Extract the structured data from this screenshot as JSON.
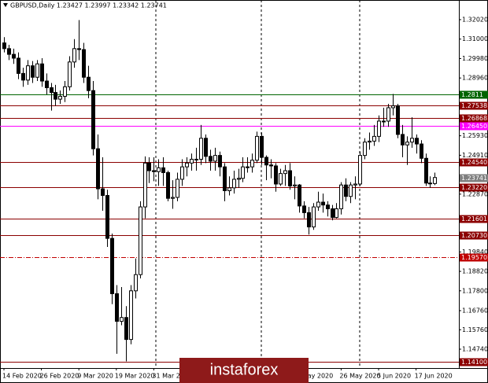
{
  "chart_data": {
    "type": "candlestick",
    "title": "GBPUSD,Daily  1.23427 1.23997 1.23342 1.23741",
    "watermark": "instaforex",
    "categories": [
      "14 Feb 2020",
      null,
      null,
      null,
      null,
      null,
      null,
      null,
      "26 Feb 2020",
      null,
      null,
      null,
      null,
      null,
      null,
      null,
      "9 Mar 2020",
      null,
      null,
      null,
      null,
      null,
      null,
      null,
      "19 Mar 2020",
      null,
      null,
      null,
      null,
      null,
      null,
      null,
      "31 Mar 2020",
      null,
      null,
      null,
      null,
      null,
      null,
      null,
      null,
      null,
      null,
      null,
      null,
      null,
      null,
      null,
      null,
      null,
      null,
      null,
      null,
      null,
      null,
      null,
      null,
      null,
      null,
      null,
      null,
      null,
      null,
      null,
      "May 2020",
      null,
      null,
      null,
      null,
      null,
      null,
      null,
      "26 May 2020",
      null,
      null,
      null,
      null,
      null,
      null,
      null,
      "5 Jun 2020",
      null,
      null,
      null,
      null,
      null,
      null,
      null,
      "17 Jun 2020",
      null,
      null,
      null,
      null
    ],
    "open": [
      1.308,
      1.305,
      1.302,
      1.3,
      1.292,
      1.2885,
      1.296,
      1.29,
      1.297,
      1.288,
      1.2845,
      1.282,
      1.2785,
      1.28,
      1.285,
      1.298,
      1.305,
      1.3045,
      1.29,
      1.283,
      1.2525,
      1.2315,
      1.228,
      1.2055,
      1.1765,
      1.162,
      1.164,
      1.1525,
      1.178,
      1.1865,
      1.222,
      1.245,
      1.241,
      1.2405,
      1.2425,
      1.24,
      1.2265,
      1.227,
      1.2365,
      1.243,
      1.245,
      1.247,
      1.247,
      1.258,
      1.2485,
      1.246,
      1.249,
      1.243,
      1.2305,
      1.232,
      1.2365,
      1.237,
      1.243,
      1.243,
      1.2465,
      1.259,
      1.248,
      1.244,
      1.2435,
      1.234,
      1.2395,
      1.241,
      1.233,
      1.2335,
      1.2225,
      1.219,
      1.2115,
      1.222,
      1.2245,
      1.223,
      1.221,
      1.2165,
      1.221,
      1.2335,
      1.2275,
      1.2335,
      1.234,
      1.249,
      1.256,
      1.2565,
      1.259,
      1.267,
      1.267,
      1.274,
      1.275,
      1.26,
      1.2545,
      1.256,
      1.258,
      1.255,
      1.2475,
      1.2345,
      1.23427
    ],
    "high": [
      1.311,
      1.307,
      1.305,
      1.303,
      1.295,
      1.299,
      1.2985,
      1.299,
      1.3,
      1.292,
      1.287,
      1.286,
      1.283,
      1.288,
      1.301,
      1.31,
      1.32,
      1.308,
      1.296,
      1.288,
      1.26,
      1.248,
      1.231,
      1.208,
      1.181,
      1.18,
      1.17,
      1.181,
      1.195,
      1.225,
      1.2485,
      1.248,
      1.248,
      1.247,
      1.248,
      1.241,
      1.236,
      1.24,
      1.247,
      1.248,
      1.25,
      1.253,
      1.265,
      1.26,
      1.252,
      1.253,
      1.251,
      1.245,
      1.238,
      1.241,
      1.242,
      1.248,
      1.248,
      1.25,
      1.2615,
      1.261,
      1.249,
      1.247,
      1.245,
      1.242,
      1.244,
      1.245,
      1.238,
      1.234,
      1.225,
      1.222,
      1.224,
      1.23,
      1.229,
      1.225,
      1.223,
      1.224,
      1.235,
      1.237,
      1.235,
      1.238,
      1.251,
      1.258,
      1.261,
      1.265,
      1.27,
      1.274,
      1.276,
      1.2812,
      1.276,
      1.265,
      1.259,
      1.269,
      1.26,
      1.257,
      1.25,
      1.238,
      1.23997
    ],
    "low": [
      1.303,
      1.299,
      1.297,
      1.289,
      1.285,
      1.286,
      1.287,
      1.288,
      1.285,
      1.281,
      1.2725,
      1.275,
      1.276,
      1.277,
      1.283,
      1.295,
      1.299,
      1.287,
      1.279,
      1.249,
      1.226,
      1.22,
      1.201,
      1.171,
      1.145,
      1.16,
      1.141,
      1.15,
      1.174,
      1.1845,
      1.216,
      1.2345,
      1.2355,
      1.233,
      1.233,
      1.225,
      1.221,
      1.225,
      1.233,
      1.238,
      1.241,
      1.241,
      1.244,
      1.245,
      1.241,
      1.241,
      1.238,
      1.225,
      1.228,
      1.229,
      1.232,
      1.235,
      1.24,
      1.24,
      1.245,
      1.244,
      1.236,
      1.237,
      1.23,
      1.233,
      1.233,
      1.231,
      1.226,
      1.219,
      1.216,
      1.2075,
      1.21,
      1.22,
      1.219,
      1.217,
      1.215,
      1.216,
      1.218,
      1.225,
      1.224,
      1.226,
      1.233,
      1.247,
      1.252,
      1.254,
      1.256,
      1.264,
      1.264,
      1.27,
      1.258,
      1.248,
      1.244,
      1.253,
      1.25,
      1.245,
      1.233,
      1.232,
      1.23342
    ],
    "close": [
      1.305,
      1.302,
      1.3,
      1.292,
      1.2885,
      1.296,
      1.29,
      1.297,
      1.288,
      1.2845,
      1.282,
      1.2785,
      1.28,
      1.285,
      1.298,
      1.305,
      1.3045,
      1.29,
      1.283,
      1.2525,
      1.2315,
      1.228,
      1.2055,
      1.1765,
      1.162,
      1.164,
      1.1525,
      1.178,
      1.1865,
      1.222,
      1.245,
      1.241,
      1.2405,
      1.2425,
      1.24,
      1.2265,
      1.227,
      1.2365,
      1.243,
      1.245,
      1.247,
      1.247,
      1.258,
      1.2485,
      1.246,
      1.249,
      1.243,
      1.2305,
      1.232,
      1.2365,
      1.237,
      1.243,
      1.243,
      1.2465,
      1.259,
      1.248,
      1.244,
      1.2435,
      1.234,
      1.2395,
      1.241,
      1.233,
      1.2335,
      1.2225,
      1.219,
      1.2115,
      1.222,
      1.2245,
      1.223,
      1.221,
      1.2165,
      1.221,
      1.2335,
      1.2275,
      1.2335,
      1.234,
      1.249,
      1.256,
      1.2565,
      1.259,
      1.267,
      1.267,
      1.274,
      1.275,
      1.26,
      1.2545,
      1.256,
      1.258,
      1.255,
      1.2475,
      1.2345,
      1.23427,
      1.23741
    ],
    "up_color": "#ffffff",
    "down_color": "#000000",
    "ylim": [
      1.1375,
      1.3305
    ],
    "yticks": [
      {
        "value": 1.3202,
        "label": "1.32020"
      },
      {
        "value": 1.31,
        "label": "1.31000"
      },
      {
        "value": 1.2998,
        "label": "1.29980"
      },
      {
        "value": 1.2896,
        "label": "1.28960"
      },
      {
        "value": 1.2593,
        "label": "1.25930"
      },
      {
        "value": 1.2491,
        "label": "1.24910"
      },
      {
        "value": 1.2287,
        "label": "1.22870"
      },
      {
        "value": 1.1984,
        "label": "1.19840"
      },
      {
        "value": 1.1882,
        "label": "1.18820"
      },
      {
        "value": 1.178,
        "label": "1.17800"
      },
      {
        "value": 1.1676,
        "label": "1.16760"
      },
      {
        "value": 1.1576,
        "label": "1.15760"
      },
      {
        "value": 1.1474,
        "label": "1.14740"
      }
    ],
    "levels": [
      {
        "value": 1.2811,
        "label": "1.2811",
        "color": "#006400",
        "style": "solid"
      },
      {
        "value": 1.27538,
        "label": "1.27538",
        "color": "#8b0000",
        "style": "solid"
      },
      {
        "value": 1.26868,
        "label": "1.26868",
        "color": "#8b0000",
        "style": "solid"
      },
      {
        "value": 1.2645,
        "label": "1.26450",
        "color": "#ff00ff",
        "style": "solid"
      },
      {
        "value": 1.2454,
        "label": "1.24540",
        "color": "#8b0000",
        "style": "solid"
      },
      {
        "value": 1.23741,
        "label": "1.23741",
        "color": "#7f7f7f",
        "style": "none"
      },
      {
        "value": 1.2322,
        "label": "1.23220",
        "color": "#8b0000",
        "style": "solid"
      },
      {
        "value": 1.21601,
        "label": "1.21601",
        "color": "#8b0000",
        "style": "solid"
      },
      {
        "value": 1.2073,
        "label": "1.20730",
        "color": "#8b0000",
        "style": "solid"
      },
      {
        "value": 1.1957,
        "label": "1.19570",
        "color": "#c00000",
        "style": "dashdot"
      },
      {
        "value": 1.141,
        "label": "1.14100",
        "color": "#8b0000",
        "style": "solid"
      }
    ]
  }
}
